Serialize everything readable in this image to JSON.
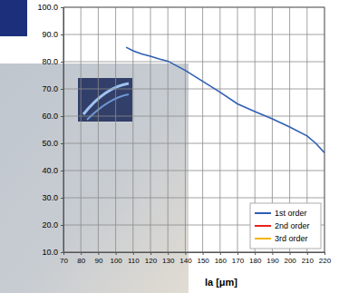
{
  "chart_data": {
    "type": "line",
    "x_label": "la [μm]",
    "x": [
      106,
      110,
      115,
      120,
      125,
      130,
      140,
      150,
      160,
      170,
      180,
      190,
      200,
      210,
      215,
      220
    ],
    "series": [
      {
        "name": "1st order",
        "color": "#2f5fb3",
        "values": [
          85.3,
          84.0,
          82.8,
          82.0,
          81.0,
          80.2,
          76.8,
          72.8,
          68.8,
          64.5,
          61.7,
          59.0,
          56.0,
          52.7,
          50.0,
          46.5
        ]
      },
      {
        "name": "2nd order",
        "color": "#e8221b",
        "values": [
          null,
          null,
          null,
          null,
          null,
          null,
          null,
          null,
          null,
          null,
          null,
          null,
          null,
          null,
          null,
          null
        ]
      },
      {
        "name": "3rd order",
        "color": "#f2b600",
        "values": [
          null,
          null,
          null,
          null,
          null,
          null,
          null,
          null,
          null,
          null,
          null,
          null,
          null,
          null,
          null,
          null
        ]
      }
    ],
    "xlim": [
      70,
      220
    ],
    "xticks": [
      70,
      80,
      90,
      100,
      110,
      120,
      130,
      140,
      150,
      160,
      170,
      180,
      190,
      200,
      210,
      220
    ],
    "ylim": [
      10,
      100
    ],
    "yticks": [
      {
        "value": 10,
        "label": "10.0"
      },
      {
        "value": 20,
        "label": "20.0"
      },
      {
        "value": 30,
        "label": "30.0"
      },
      {
        "value": 40,
        "label": "40.0"
      },
      {
        "value": 50,
        "label": "50.0"
      },
      {
        "value": 60,
        "label": "60.0"
      },
      {
        "value": 70,
        "label": "70.0"
      },
      {
        "value": 80,
        "label": "80.0"
      },
      {
        "value": 90,
        "label": "90.0"
      },
      {
        "value": 100,
        "label": "100.0"
      }
    ],
    "grid": true,
    "legend": "lower right"
  }
}
